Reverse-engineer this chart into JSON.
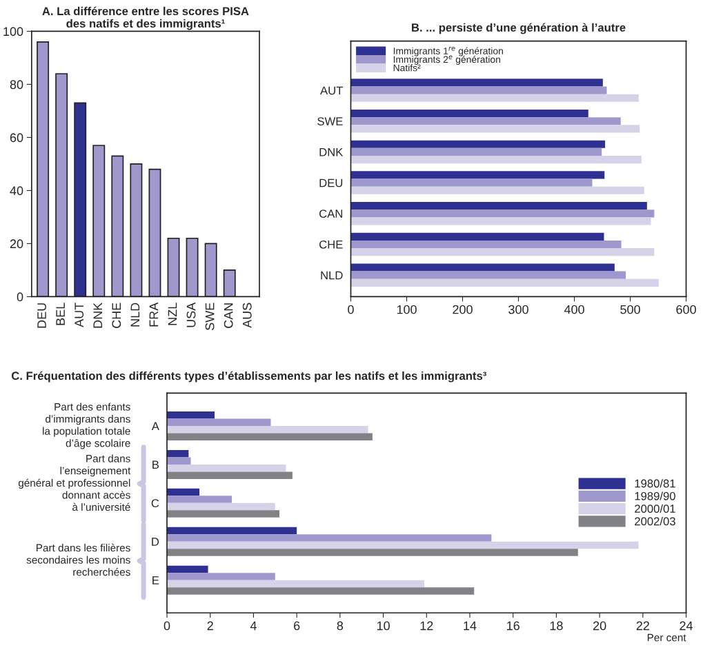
{
  "chart_data": [
    {
      "type": "bar",
      "title": "A. La différence entre les scores PISA\ndes natifs et des immigrants¹",
      "categories": [
        "DEU",
        "BEL",
        "AUT",
        "DNK",
        "CHE",
        "NLD",
        "FRA",
        "NZL",
        "USA",
        "SWE",
        "CAN",
        "AUS"
      ],
      "values": [
        96,
        84,
        73,
        57,
        53,
        50,
        48,
        22,
        22,
        20,
        10,
        null
      ],
      "colors": [
        "#9e98cc",
        "#9e98cc",
        "#2e3192",
        "#9e98cc",
        "#9e98cc",
        "#9e98cc",
        "#9e98cc",
        "#9e98cc",
        "#9e98cc",
        "#9e98cc",
        "#9e98cc",
        "#9e98cc"
      ],
      "ylim": [
        0,
        100
      ],
      "yticks": [
        0,
        20,
        40,
        60,
        80,
        100
      ],
      "grid": false
    },
    {
      "type": "bar",
      "orientation": "horizontal",
      "title": "B. ... persiste d’une génération à l’autre",
      "categories": [
        "AUT",
        "SWE",
        "DNK",
        "DEU",
        "CAN",
        "CHE",
        "NLD"
      ],
      "series": [
        {
          "name": "Immigrants 1$^{re}$ génération",
          "color": "#2e3192",
          "values": [
            451,
            425,
            455,
            454,
            530,
            453,
            472
          ]
        },
        {
          "name": "Immigrants 2$^{e}$ génération",
          "color": "#9e98cc",
          "values": [
            458,
            483,
            449,
            432,
            543,
            484,
            492
          ]
        },
        {
          "name": "Natifs²",
          "color": "#d6d3e9",
          "values": [
            515,
            517,
            520,
            525,
            537,
            543,
            551
          ]
        }
      ],
      "xlim": [
        0,
        600
      ],
      "xticks": [
        0,
        100,
        200,
        300,
        400,
        500,
        600
      ],
      "grid": false,
      "legend": "top left"
    },
    {
      "type": "bar",
      "orientation": "horizontal",
      "title": "C. Fréquentation des différents types d’établissements par les natifs et les immigrants³",
      "xlabel": "Per cent",
      "categories": [
        "A",
        "B",
        "C",
        "D",
        "E"
      ],
      "series": [
        {
          "name": "1980/81",
          "color": "#2e3192",
          "values": [
            2.2,
            1.0,
            1.5,
            6.0,
            1.9
          ]
        },
        {
          "name": "1989/90",
          "color": "#9e98cc",
          "values": [
            4.8,
            1.1,
            3.0,
            15.0,
            5.0
          ]
        },
        {
          "name": "2000/01",
          "color": "#d6d3e9",
          "values": [
            9.3,
            5.5,
            5.0,
            21.8,
            11.9
          ]
        },
        {
          "name": "2002/03",
          "color": "#808285",
          "values": [
            9.5,
            5.8,
            5.2,
            19.0,
            14.2
          ]
        }
      ],
      "annotations": [
        "Part des enfants\nd’immigrants dans\nla population totale\nd’âge scolaire",
        "Part dans\nl’enseignement\ngénéral et professionnel\ndonnant accès\nà l’université",
        "Part dans les filières\nsecondaires les moins\nrecherchées"
      ],
      "xlim": [
        0,
        24
      ],
      "xticks": [
        0,
        2,
        4,
        6,
        8,
        10,
        12,
        14,
        16,
        18,
        20,
        22,
        24
      ],
      "grid": false,
      "legend": "right"
    }
  ]
}
